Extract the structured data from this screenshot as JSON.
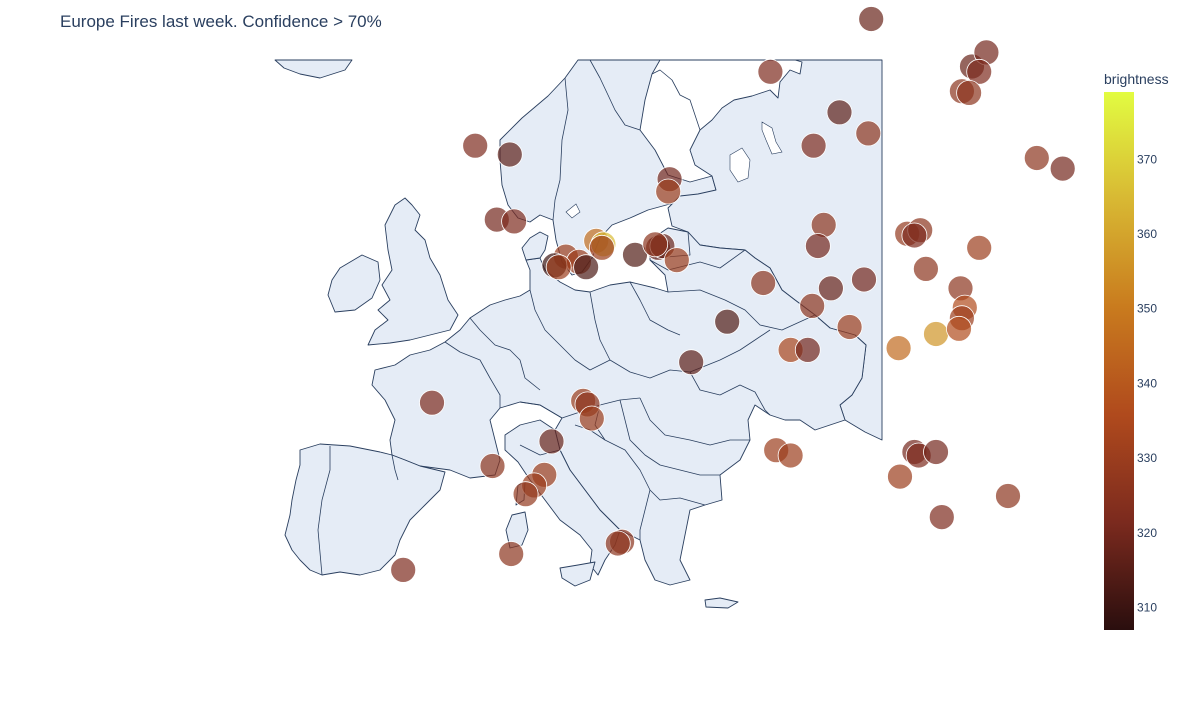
{
  "title": "Europe Fires last week. Confidence > 70%",
  "colors": {
    "land": "#e5ecf6",
    "border": "#2a3f5f",
    "marker_outline": "#ffffff"
  },
  "colorbar": {
    "title": "brightness",
    "min": 307,
    "max": 379,
    "ticks": [
      310,
      320,
      330,
      340,
      350,
      360,
      370
    ],
    "colorscale": [
      "#2a0e0e",
      "#7b2a1e",
      "#b04a1d",
      "#c97b1e",
      "#d8b833",
      "#e2fc41"
    ]
  },
  "chart_data": {
    "type": "scatter",
    "projection": "geographic (lon, lat)",
    "marker_opacity": 0.7,
    "points": [
      {
        "lon": 23.0,
        "lat": 65.0,
        "brightness": 318
      },
      {
        "lon": 16.0,
        "lat": 62.0,
        "brightness": 322
      },
      {
        "lon": 30.0,
        "lat": 62.3,
        "brightness": 318
      },
      {
        "lon": 31.0,
        "lat": 63.1,
        "brightness": 320
      },
      {
        "lon": 30.5,
        "lat": 62.0,
        "brightness": 322
      },
      {
        "lon": 29.3,
        "lat": 60.9,
        "brightness": 326
      },
      {
        "lon": 29.8,
        "lat": 60.8,
        "brightness": 326
      },
      {
        "lon": 20.8,
        "lat": 59.7,
        "brightness": 316
      },
      {
        "lon": 22.8,
        "lat": 58.5,
        "brightness": 326
      },
      {
        "lon": 19.0,
        "lat": 57.8,
        "brightness": 322
      },
      {
        "lon": 34.5,
        "lat": 57.1,
        "brightness": 326
      },
      {
        "lon": 36.3,
        "lat": 56.5,
        "brightness": 320
      },
      {
        "lon": -4.5,
        "lat": 57.8,
        "brightness": 322
      },
      {
        "lon": -2.1,
        "lat": 57.3,
        "brightness": 316
      },
      {
        "lon": 9.0,
        "lat": 55.9,
        "brightness": 320
      },
      {
        "lon": 8.9,
        "lat": 55.2,
        "brightness": 330
      },
      {
        "lon": -3.0,
        "lat": 53.6,
        "brightness": 320
      },
      {
        "lon": -1.8,
        "lat": 53.5,
        "brightness": 322
      },
      {
        "lon": 3.9,
        "lat": 52.4,
        "brightness": 346
      },
      {
        "lon": 4.4,
        "lat": 52.2,
        "brightness": 365
      },
      {
        "lon": 4.3,
        "lat": 52.0,
        "brightness": 330
      },
      {
        "lon": 1.8,
        "lat": 51.5,
        "brightness": 330
      },
      {
        "lon": 2.7,
        "lat": 51.2,
        "brightness": 330
      },
      {
        "lon": 1.0,
        "lat": 51.0,
        "brightness": 310
      },
      {
        "lon": 1.3,
        "lat": 50.9,
        "brightness": 330
      },
      {
        "lon": 3.2,
        "lat": 50.9,
        "brightness": 313
      },
      {
        "lon": 6.6,
        "lat": 51.6,
        "brightness": 314
      },
      {
        "lon": 8.2,
        "lat": 52.0,
        "brightness": 318
      },
      {
        "lon": 8.5,
        "lat": 52.1,
        "brightness": 318
      },
      {
        "lon": 8.0,
        "lat": 52.2,
        "brightness": 326
      },
      {
        "lon": 9.5,
        "lat": 51.3,
        "brightness": 330
      },
      {
        "lon": 19.7,
        "lat": 53.3,
        "brightness": 326
      },
      {
        "lon": 19.3,
        "lat": 52.1,
        "brightness": 320
      },
      {
        "lon": 15.5,
        "lat": 50.0,
        "brightness": 326
      },
      {
        "lon": 20.2,
        "lat": 49.7,
        "brightness": 318
      },
      {
        "lon": 22.5,
        "lat": 50.2,
        "brightness": 320
      },
      {
        "lon": 25.5,
        "lat": 52.8,
        "brightness": 328
      },
      {
        "lon": 26.4,
        "lat": 53.0,
        "brightness": 326
      },
      {
        "lon": 26.0,
        "lat": 52.7,
        "brightness": 322
      },
      {
        "lon": 30.5,
        "lat": 52.0,
        "brightness": 330
      },
      {
        "lon": 26.8,
        "lat": 50.8,
        "brightness": 326
      },
      {
        "lon": 29.2,
        "lat": 49.7,
        "brightness": 326
      },
      {
        "lon": 29.5,
        "lat": 48.6,
        "brightness": 336
      },
      {
        "lon": 27.5,
        "lat": 47.1,
        "brightness": 356
      },
      {
        "lon": 29.3,
        "lat": 48.0,
        "brightness": 330
      },
      {
        "lon": 29.1,
        "lat": 47.4,
        "brightness": 336
      },
      {
        "lon": 18.9,
        "lat": 48.7,
        "brightness": 326
      },
      {
        "lon": 21.5,
        "lat": 47.5,
        "brightness": 330
      },
      {
        "lon": 13.0,
        "lat": 47.8,
        "brightness": 314
      },
      {
        "lon": 17.4,
        "lat": 46.2,
        "brightness": 334
      },
      {
        "lon": 18.6,
        "lat": 46.2,
        "brightness": 320
      },
      {
        "lon": 24.9,
        "lat": 46.3,
        "brightness": 345
      },
      {
        "lon": 10.5,
        "lat": 45.5,
        "brightness": 316
      },
      {
        "lon": 3.0,
        "lat": 43.3,
        "brightness": 330
      },
      {
        "lon": 3.3,
        "lat": 43.1,
        "brightness": 326
      },
      {
        "lon": 3.6,
        "lat": 42.3,
        "brightness": 330
      },
      {
        "lon": 0.8,
        "lat": 41.0,
        "brightness": 318
      },
      {
        "lon": -7.5,
        "lat": 43.2,
        "brightness": 322
      },
      {
        "lon": -3.3,
        "lat": 39.6,
        "brightness": 326
      },
      {
        "lon": 0.3,
        "lat": 39.1,
        "brightness": 330
      },
      {
        "lon": -0.4,
        "lat": 38.5,
        "brightness": 330
      },
      {
        "lon": -1.0,
        "lat": 38.0,
        "brightness": 328
      },
      {
        "lon": 16.4,
        "lat": 40.5,
        "brightness": 330
      },
      {
        "lon": 17.4,
        "lat": 40.2,
        "brightness": 330
      },
      {
        "lon": 26.0,
        "lat": 40.4,
        "brightness": 320
      },
      {
        "lon": 26.3,
        "lat": 40.2,
        "brightness": 322
      },
      {
        "lon": 27.5,
        "lat": 40.4,
        "brightness": 320
      },
      {
        "lon": 25.0,
        "lat": 39.0,
        "brightness": 330
      },
      {
        "lon": 27.9,
        "lat": 36.7,
        "brightness": 322
      },
      {
        "lon": 32.5,
        "lat": 37.9,
        "brightness": 326
      },
      {
        "lon": 5.7,
        "lat": 35.3,
        "brightness": 326
      },
      {
        "lon": -2.0,
        "lat": 34.6,
        "brightness": 326
      },
      {
        "lon": -9.5,
        "lat": 33.7,
        "brightness": 322
      },
      {
        "lon": 5.4,
        "lat": 35.2,
        "brightness": 326
      }
    ]
  }
}
